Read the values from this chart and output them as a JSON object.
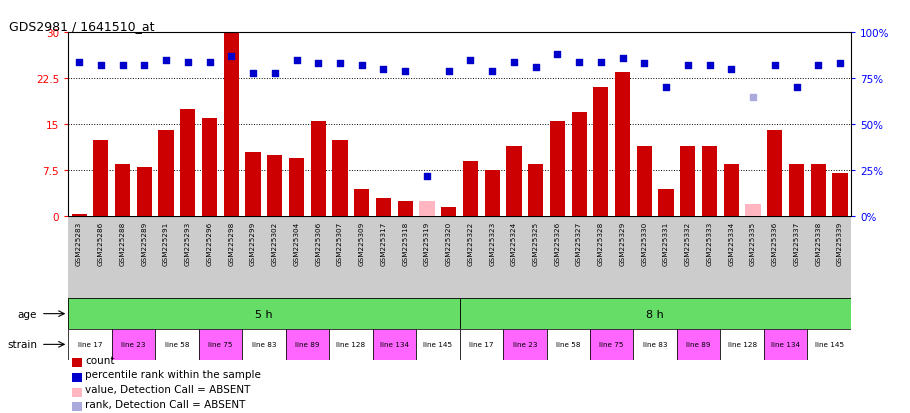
{
  "title": "GDS2981 / 1641510_at",
  "samples": [
    "GSM225283",
    "GSM225286",
    "GSM225288",
    "GSM225289",
    "GSM225291",
    "GSM225293",
    "GSM225296",
    "GSM225298",
    "GSM225299",
    "GSM225302",
    "GSM225304",
    "GSM225306",
    "GSM225307",
    "GSM225309",
    "GSM225317",
    "GSM225318",
    "GSM225319",
    "GSM225320",
    "GSM225322",
    "GSM225323",
    "GSM225324",
    "GSM225325",
    "GSM225326",
    "GSM225327",
    "GSM225328",
    "GSM225329",
    "GSM225330",
    "GSM225331",
    "GSM225332",
    "GSM225333",
    "GSM225334",
    "GSM225335",
    "GSM225336",
    "GSM225337",
    "GSM225338",
    "GSM225339"
  ],
  "count_values": [
    0.4,
    12.5,
    8.5,
    8.0,
    14.0,
    17.5,
    16.0,
    29.8,
    10.5,
    10.0,
    9.5,
    15.5,
    12.5,
    4.5,
    3.0,
    2.5,
    2.5,
    1.5,
    9.0,
    7.5,
    11.5,
    8.5,
    15.5,
    17.0,
    21.0,
    23.5,
    11.5,
    4.5,
    11.5,
    11.5,
    8.5,
    2.0,
    14.0,
    8.5,
    8.5,
    7.0
  ],
  "rank_values": [
    84,
    82,
    82,
    82,
    85,
    84,
    84,
    87,
    78,
    78,
    85,
    83,
    83,
    82,
    80,
    79,
    22,
    79,
    85,
    79,
    84,
    81,
    88,
    84,
    84,
    86,
    83,
    70,
    82,
    82,
    80,
    65,
    82,
    70,
    82,
    83
  ],
  "count_absent": [
    false,
    false,
    false,
    false,
    false,
    false,
    false,
    false,
    false,
    false,
    false,
    false,
    false,
    false,
    false,
    false,
    true,
    false,
    false,
    false,
    false,
    false,
    false,
    false,
    false,
    false,
    false,
    false,
    false,
    false,
    false,
    true,
    false,
    false,
    false,
    false
  ],
  "rank_absent": [
    false,
    false,
    false,
    false,
    false,
    false,
    false,
    false,
    false,
    false,
    false,
    false,
    false,
    false,
    false,
    false,
    false,
    false,
    false,
    false,
    false,
    false,
    false,
    false,
    false,
    false,
    false,
    false,
    false,
    false,
    false,
    true,
    false,
    false,
    false,
    false
  ],
  "strain_groups": [
    {
      "label": "line 17",
      "start": 0,
      "end": 2,
      "color": "white"
    },
    {
      "label": "line 23",
      "start": 2,
      "end": 4,
      "color": "#FF66FF"
    },
    {
      "label": "line 58",
      "start": 4,
      "end": 6,
      "color": "white"
    },
    {
      "label": "line 75",
      "start": 6,
      "end": 8,
      "color": "#FF66FF"
    },
    {
      "label": "line 83",
      "start": 8,
      "end": 10,
      "color": "white"
    },
    {
      "label": "line 89",
      "start": 10,
      "end": 12,
      "color": "#FF66FF"
    },
    {
      "label": "line 128",
      "start": 12,
      "end": 14,
      "color": "white"
    },
    {
      "label": "line 134",
      "start": 14,
      "end": 16,
      "color": "#FF66FF"
    },
    {
      "label": "line 145",
      "start": 16,
      "end": 18,
      "color": "white"
    },
    {
      "label": "line 17",
      "start": 18,
      "end": 20,
      "color": "white"
    },
    {
      "label": "line 23",
      "start": 20,
      "end": 22,
      "color": "#FF66FF"
    },
    {
      "label": "line 58",
      "start": 22,
      "end": 24,
      "color": "white"
    },
    {
      "label": "line 75",
      "start": 24,
      "end": 26,
      "color": "#FF66FF"
    },
    {
      "label": "line 83",
      "start": 26,
      "end": 28,
      "color": "white"
    },
    {
      "label": "line 89",
      "start": 28,
      "end": 30,
      "color": "#FF66FF"
    },
    {
      "label": "line 128",
      "start": 30,
      "end": 32,
      "color": "white"
    },
    {
      "label": "line 134",
      "start": 32,
      "end": 34,
      "color": "#FF66FF"
    },
    {
      "label": "line 145",
      "start": 34,
      "end": 36,
      "color": "white"
    }
  ],
  "ylim_left": [
    0,
    30
  ],
  "ylim_right": [
    0,
    100
  ],
  "yticks_left": [
    0,
    7.5,
    15,
    22.5,
    30
  ],
  "yticks_right": [
    0,
    25,
    50,
    75,
    100
  ],
  "bar_color": "#CC0000",
  "bar_absent_color": "#FFB6C1",
  "rank_color": "#0000CC",
  "rank_absent_color": "#AAAADD",
  "xtick_bg": "#DDDDDD",
  "age_color": "#66DD66",
  "age_5h_label": "5 h",
  "age_8h_label": "8 h",
  "legend_items": [
    {
      "color": "#CC0000",
      "label": "count"
    },
    {
      "color": "#0000CC",
      "label": "percentile rank within the sample"
    },
    {
      "color": "#FFB6C1",
      "label": "value, Detection Call = ABSENT"
    },
    {
      "color": "#AAAADD",
      "label": "rank, Detection Call = ABSENT"
    }
  ]
}
